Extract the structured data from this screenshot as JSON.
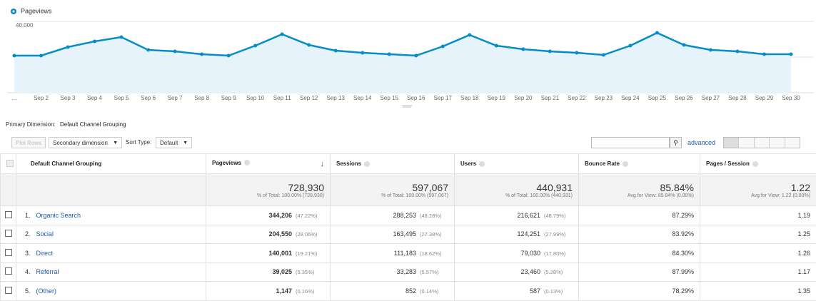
{
  "chart_data": {
    "type": "line",
    "legend": "Pageviews",
    "series": [
      {
        "name": "Pageviews",
        "color": "#058dc7",
        "values": [
          20800,
          20800,
          25600,
          28800,
          31200,
          24000,
          23200,
          21600,
          20800,
          26400,
          32800,
          26800,
          23600,
          22400,
          21600,
          20800,
          26000,
          32400,
          26400,
          24400,
          23200,
          22400,
          21200,
          26400,
          33600,
          26800,
          24000,
          23200,
          21600,
          21600
        ]
      }
    ],
    "categories": [
      "...",
      "Sep 2",
      "Sep 3",
      "Sep 4",
      "Sep 5",
      "Sep 6",
      "Sep 7",
      "Sep 8",
      "Sep 9",
      "Sep 10",
      "Sep 11",
      "Sep 12",
      "Sep 13",
      "Sep 14",
      "Sep 15",
      "Sep 16",
      "Sep 17",
      "Sep 18",
      "Sep 19",
      "Sep 20",
      "Sep 21",
      "Sep 22",
      "Sep 23",
      "Sep 24",
      "Sep 25",
      "Sep 26",
      "Sep 27",
      "Sep 28",
      "Sep 29",
      "Sep 30"
    ],
    "ylim": [
      0,
      42400
    ],
    "yticks": [
      {
        "value": 20000,
        "label": "20,000"
      },
      {
        "value": 40000,
        "label": "40,000"
      }
    ],
    "grid": true
  },
  "toolbar": {
    "primary_label": "Primary Dimension:",
    "primary_value": "Default Channel Grouping",
    "plot_rows": "Plot Rows",
    "secondary": "Secondary dimension",
    "sort_label": "Sort Type:",
    "sort_value": "Default",
    "advanced": "advanced"
  },
  "table": {
    "headers": [
      "Default Channel Grouping",
      "Pageviews",
      "Sessions",
      "Users",
      "Bounce Rate",
      "Pages / Session"
    ],
    "totals": [
      {
        "value": "728,930",
        "note": "% of Total: 100.00% (728,930)"
      },
      {
        "value": "597,067",
        "note": "% of Total: 100.00% (597,067)"
      },
      {
        "value": "440,931",
        "note": "% of Total: 100.00% (440,931)"
      },
      {
        "value": "85.84%",
        "note": "Avg for View: 85.84% (0.00%)"
      },
      {
        "value": "1.22",
        "note": "Avg for View: 1.22 (0.00%)"
      }
    ],
    "rows": [
      {
        "index": "1.",
        "name": "Organic Search",
        "cells": [
          [
            "344,206",
            "(47.22%)"
          ],
          [
            "288,253",
            "(48.28%)"
          ],
          [
            "216,621",
            "(48.79%)"
          ],
          [
            "87.29%"
          ],
          [
            "1.19"
          ]
        ]
      },
      {
        "index": "2.",
        "name": "Social",
        "cells": [
          [
            "204,550",
            "(28.06%)"
          ],
          [
            "163,495",
            "(27.38%)"
          ],
          [
            "124,251",
            "(27.99%)"
          ],
          [
            "83.92%"
          ],
          [
            "1.25"
          ]
        ]
      },
      {
        "index": "3.",
        "name": "Direct",
        "cells": [
          [
            "140,001",
            "(19.21%)"
          ],
          [
            "111,183",
            "(18.62%)"
          ],
          [
            "79,030",
            "(17.80%)"
          ],
          [
            "84.30%"
          ],
          [
            "1.26"
          ]
        ]
      },
      {
        "index": "4.",
        "name": "Referral",
        "cells": [
          [
            "39,025",
            "(5.35%)"
          ],
          [
            "33,283",
            "(5.57%)"
          ],
          [
            "23,460",
            "(5.28%)"
          ],
          [
            "87.99%"
          ],
          [
            "1.17"
          ]
        ]
      },
      {
        "index": "5.",
        "name": "(Other)",
        "cells": [
          [
            "1,147",
            "(0.16%)"
          ],
          [
            "852",
            "(0.14%)"
          ],
          [
            "587",
            "(0.13%)"
          ],
          [
            "78.29%"
          ],
          [
            "1.35"
          ]
        ]
      }
    ]
  }
}
